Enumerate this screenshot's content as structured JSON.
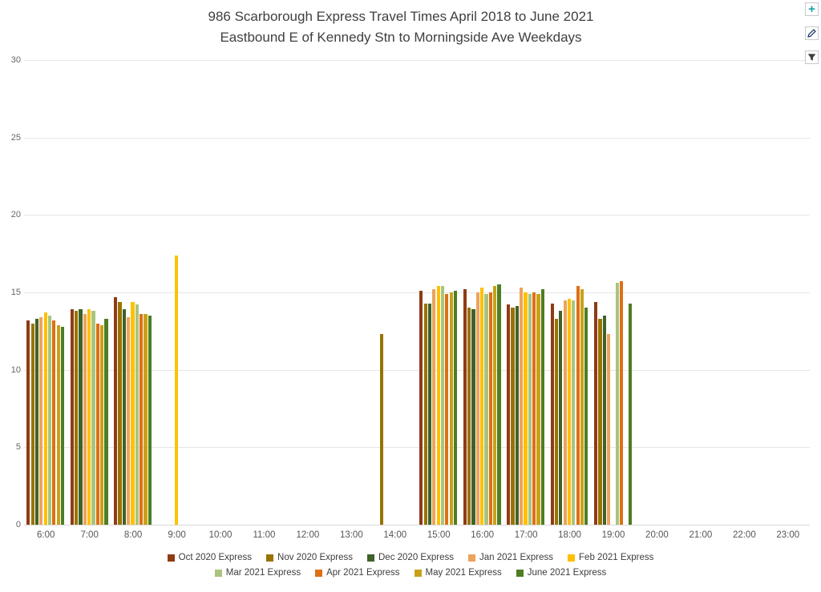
{
  "header": {
    "title_line1": "986 Scarborough Express Travel Times April 2018 to June 2021",
    "title_line2": "Eastbound E of Kennedy Stn to Morningside Ave Weekdays"
  },
  "toolbar": {
    "icons": [
      {
        "name": "add-icon",
        "glyph": "+",
        "color": "#17a2a8"
      },
      {
        "name": "pencil-icon",
        "color": "#1f3864"
      },
      {
        "name": "filter-icon",
        "color": "#3b3b3b"
      }
    ]
  },
  "chart_data": {
    "type": "bar",
    "title": "986 Scarborough Express Travel Times April 2018 to June 2021 Eastbound E of Kennedy Stn to Morningside Ave Weekdays",
    "xlabel": "",
    "ylabel": "",
    "ylim": [
      0,
      30
    ],
    "yticks": [
      0,
      5,
      10,
      15,
      20,
      25,
      30
    ],
    "grid": true,
    "legend_position": "bottom",
    "categories": [
      "6:00",
      "7:00",
      "8:00",
      "9:00",
      "10:00",
      "11:00",
      "12:00",
      "13:00",
      "14:00",
      "15:00",
      "16:00",
      "17:00",
      "18:00",
      "19:00",
      "20:00",
      "21:00",
      "22:00",
      "23:00"
    ],
    "series": [
      {
        "name": "Oct 2020 Express",
        "color": "#8f3b14",
        "values": [
          13.2,
          13.9,
          14.7,
          null,
          null,
          null,
          null,
          null,
          null,
          15.1,
          15.2,
          14.2,
          14.3,
          14.4,
          null,
          null,
          null,
          null
        ]
      },
      {
        "name": "Nov 2020 Express",
        "color": "#997300",
        "values": [
          13.0,
          13.8,
          14.4,
          null,
          null,
          null,
          null,
          null,
          12.3,
          14.3,
          14.0,
          14.0,
          13.3,
          13.3,
          null,
          null,
          null,
          null
        ]
      },
      {
        "name": "Dec 2020 Express",
        "color": "#3f6228",
        "values": [
          13.3,
          13.9,
          13.9,
          null,
          null,
          null,
          null,
          null,
          null,
          14.3,
          13.9,
          14.1,
          13.8,
          13.5,
          null,
          null,
          null,
          null
        ]
      },
      {
        "name": "Jan 2021 Express",
        "color": "#eda35c",
        "values": [
          13.4,
          13.6,
          13.4,
          null,
          null,
          null,
          null,
          null,
          null,
          15.2,
          15.0,
          15.3,
          14.5,
          12.3,
          null,
          null,
          null,
          null
        ]
      },
      {
        "name": "Feb 2021 Express",
        "color": "#ffc000",
        "values": [
          13.7,
          13.9,
          14.4,
          17.4,
          null,
          null,
          null,
          null,
          null,
          15.4,
          15.3,
          15.0,
          14.6,
          null,
          null,
          null,
          null,
          null
        ]
      },
      {
        "name": "Mar 2021 Express",
        "color": "#a9c47f",
        "values": [
          13.5,
          13.8,
          14.2,
          null,
          null,
          null,
          null,
          null,
          null,
          15.4,
          14.9,
          14.9,
          14.5,
          15.6,
          null,
          null,
          null,
          null
        ]
      },
      {
        "name": "Apr 2021 Express",
        "color": "#dd7014",
        "values": [
          13.2,
          13.0,
          13.6,
          null,
          null,
          null,
          null,
          null,
          null,
          14.9,
          15.0,
          15.0,
          15.4,
          15.7,
          null,
          null,
          null,
          null
        ]
      },
      {
        "name": "May 2021 Express",
        "color": "#c9a118",
        "values": [
          12.9,
          12.9,
          13.6,
          null,
          null,
          null,
          null,
          null,
          null,
          15.0,
          15.4,
          14.9,
          15.2,
          null,
          null,
          null,
          null,
          null
        ]
      },
      {
        "name": "June 2021 Express",
        "color": "#4e7d24",
        "values": [
          12.8,
          13.3,
          13.5,
          null,
          null,
          null,
          null,
          null,
          null,
          15.1,
          15.5,
          15.2,
          14.0,
          14.3,
          null,
          null,
          null,
          null
        ]
      }
    ]
  }
}
